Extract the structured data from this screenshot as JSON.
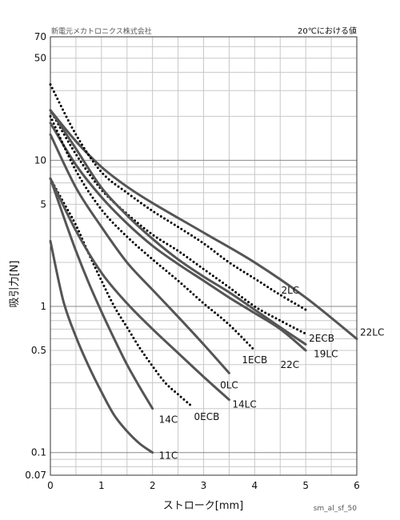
{
  "header": {
    "company": "新電元メカトロニクス株式会社",
    "condition": "20℃における値"
  },
  "footer_code": "sm_al_sf_50",
  "chart_data": {
    "type": "line",
    "title": "",
    "xlabel": "ストローク[mm]",
    "ylabel": "吸引力[N]",
    "xlim": [
      0,
      6
    ],
    "ylim": [
      0.07,
      70
    ],
    "y_scale": "log",
    "grid": true,
    "x_ticks": [
      0,
      1,
      2,
      3,
      4,
      5,
      6
    ],
    "y_ticks": [
      0.07,
      0.1,
      0.5,
      1,
      5,
      10,
      50,
      70
    ],
    "legend": "inline labels at curve ends",
    "series": [
      {
        "name": "22LC",
        "style": "solid",
        "x": [
          0,
          0.5,
          1,
          1.5,
          2,
          3,
          4,
          5,
          6
        ],
        "y": [
          22,
          13.5,
          9,
          6.6,
          5.1,
          3.2,
          2.0,
          1.15,
          0.6
        ]
      },
      {
        "name": "2LC",
        "style": "dotted",
        "x": [
          0,
          0.5,
          1,
          1.5,
          2,
          2.5,
          3,
          3.5,
          4,
          4.5,
          5
        ],
        "y": [
          33,
          15,
          8.3,
          6.0,
          4.5,
          3.5,
          2.7,
          2.0,
          1.55,
          1.2,
          0.95
        ]
      },
      {
        "name": "2ECB",
        "style": "dotted",
        "x": [
          0,
          0.5,
          1,
          1.5,
          2,
          2.5,
          3,
          3.5,
          4,
          4.5,
          5
        ],
        "y": [
          22,
          11,
          6.3,
          4.3,
          3.1,
          2.4,
          1.8,
          1.35,
          1.0,
          0.8,
          0.65
        ]
      },
      {
        "name": "19LC",
        "style": "solid",
        "x": [
          0,
          0.5,
          1,
          1.5,
          2,
          2.5,
          3,
          3.5,
          4,
          4.5,
          5
        ],
        "y": [
          22,
          12,
          6.5,
          4.2,
          2.9,
          2.1,
          1.6,
          1.25,
          0.95,
          0.72,
          0.55
        ]
      },
      {
        "name": "22C",
        "style": "solid",
        "x": [
          0,
          0.5,
          1,
          1.5,
          2,
          2.5,
          3,
          3.5,
          4,
          4.5,
          5
        ],
        "y": [
          18,
          9.3,
          5.6,
          3.7,
          2.6,
          1.95,
          1.5,
          1.15,
          0.9,
          0.7,
          0.5
        ]
      },
      {
        "name": "1ECB",
        "style": "dotted",
        "x": [
          0,
          0.5,
          1,
          1.5,
          2,
          2.5,
          3,
          3.5,
          4
        ],
        "y": [
          20,
          8.5,
          4.6,
          3.0,
          2.1,
          1.5,
          1.05,
          0.75,
          0.5
        ]
      },
      {
        "name": "0LC",
        "style": "solid",
        "x": [
          0,
          0.5,
          1,
          1.5,
          2,
          2.5,
          3,
          3.5
        ],
        "y": [
          15,
          6.5,
          3.5,
          2.0,
          1.3,
          0.85,
          0.55,
          0.35
        ]
      },
      {
        "name": "0ECB",
        "style": "dotted",
        "x": [
          0,
          0.25,
          0.5,
          0.75,
          1,
          1.25,
          1.5,
          1.75,
          2,
          2.25,
          2.5,
          2.75
        ],
        "y": [
          7.5,
          5.2,
          3.6,
          2.3,
          1.5,
          1.0,
          0.72,
          0.52,
          0.39,
          0.3,
          0.25,
          0.21
        ]
      },
      {
        "name": "14LC",
        "style": "solid",
        "x": [
          0,
          0.5,
          1,
          1.5,
          2,
          2.5,
          3,
          3.5
        ],
        "y": [
          7.5,
          3.3,
          1.7,
          1.05,
          0.7,
          0.48,
          0.33,
          0.23
        ]
      },
      {
        "name": "14C",
        "style": "solid",
        "x": [
          0,
          0.25,
          0.5,
          0.75,
          1,
          1.25,
          1.5,
          1.75,
          2
        ],
        "y": [
          7.5,
          4.2,
          2.4,
          1.45,
          0.92,
          0.6,
          0.4,
          0.28,
          0.2
        ]
      },
      {
        "name": "11C",
        "style": "solid",
        "x": [
          0,
          0.25,
          0.5,
          0.75,
          1,
          1.25,
          1.5,
          1.75,
          2
        ],
        "y": [
          2.8,
          1.1,
          0.62,
          0.39,
          0.26,
          0.18,
          0.14,
          0.115,
          0.1
        ]
      }
    ]
  }
}
